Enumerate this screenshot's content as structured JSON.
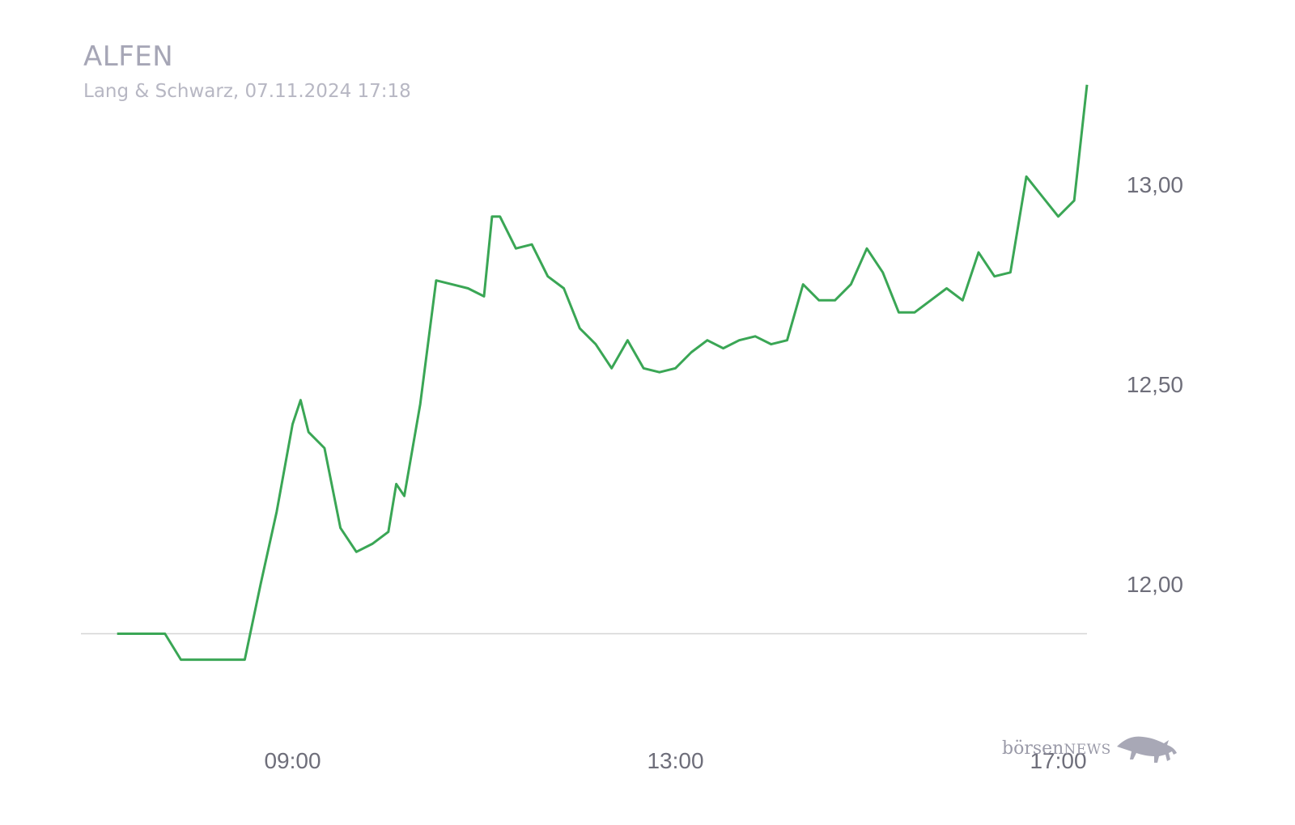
{
  "header": {
    "title": "ALFEN",
    "subtitle": "Lang & Schwarz, 07.11.2024 17:18"
  },
  "logo": {
    "text_main": "börsen",
    "text_accent": "NEWS"
  },
  "colors": {
    "line": "#3aa655",
    "reference_line": "#d5d5d5",
    "text_muted": "#a6a6b6"
  },
  "chart_data": {
    "type": "line",
    "title": "ALFEN",
    "subtitle": "Lang & Schwarz, 07.11.2024 17:18",
    "x_ticks": [
      "09:00",
      "13:00",
      "17:00"
    ],
    "y_ticks": [
      "12,00",
      "12,50",
      "13,00"
    ],
    "y_tick_values": [
      12.0,
      12.5,
      13.0
    ],
    "ylim": [
      11.72,
      13.28
    ],
    "xlim": [
      "07:00",
      "17:18"
    ],
    "reference_value": 11.875,
    "grid": false,
    "legend": "none",
    "series": [
      {
        "x": [
          "07:10",
          "07:20",
          "07:30",
          "07:40",
          "07:50",
          "08:00",
          "08:10",
          "08:20",
          "08:30",
          "08:40",
          "08:50",
          "09:00",
          "09:05",
          "09:10",
          "09:20",
          "09:30",
          "09:40",
          "09:50",
          "10:00",
          "10:05",
          "10:10",
          "10:20",
          "10:30",
          "10:40",
          "10:50",
          "11:00",
          "11:05",
          "11:10",
          "11:20",
          "11:30",
          "11:40",
          "11:50",
          "12:00",
          "12:10",
          "12:20",
          "12:30",
          "12:40",
          "12:50",
          "13:00",
          "13:10",
          "13:20",
          "13:30",
          "13:40",
          "13:50",
          "14:00",
          "14:10",
          "14:20",
          "14:30",
          "14:40",
          "14:50",
          "15:00",
          "15:10",
          "15:20",
          "15:30",
          "15:40",
          "15:50",
          "16:00",
          "16:10",
          "16:20",
          "16:30",
          "16:40",
          "16:50",
          "17:00",
          "17:10",
          "17:18"
        ],
        "y": [
          11.875,
          11.875,
          11.875,
          11.875,
          11.81,
          11.81,
          11.81,
          11.81,
          11.81,
          12.0,
          12.18,
          12.4,
          12.46,
          12.38,
          12.34,
          12.14,
          12.08,
          12.1,
          12.13,
          12.25,
          12.22,
          12.45,
          12.76,
          12.75,
          12.74,
          12.72,
          12.92,
          12.92,
          12.84,
          12.85,
          12.77,
          12.74,
          12.64,
          12.6,
          12.54,
          12.61,
          12.54,
          12.53,
          12.54,
          12.58,
          12.61,
          12.59,
          12.61,
          12.62,
          12.6,
          12.61,
          12.75,
          12.71,
          12.71,
          12.75,
          12.84,
          12.78,
          12.68,
          12.68,
          12.71,
          12.74,
          12.71,
          12.83,
          12.77,
          12.78,
          13.02,
          12.97,
          12.92,
          12.96,
          13.25
        ]
      }
    ]
  }
}
